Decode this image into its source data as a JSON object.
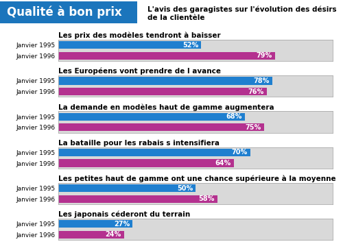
{
  "title": "Qualité à bon prix",
  "subtitle": "L'avis des garagistes sur l'évolution des désirs de la clientèle",
  "chart_data": [
    {
      "type": "bar",
      "orientation": "horizontal",
      "title": "Les prix des modèles tendront à baisser",
      "categories": [
        "Janvier 1995",
        "Janvier 1996"
      ],
      "values": [
        52,
        79
      ],
      "value_labels": [
        "52%",
        "79%"
      ],
      "colors": [
        "#1f7fcf",
        "#b4318f"
      ],
      "xlim": [
        0,
        100
      ],
      "tick_labels": "y",
      "data_labels": true
    },
    {
      "type": "bar",
      "orientation": "horizontal",
      "title": "Les Européens vont prendre de l avance",
      "categories": [
        "Janvier 1995",
        "Janvier 1996"
      ],
      "values": [
        78,
        76
      ],
      "value_labels": [
        "78%",
        "76%"
      ],
      "colors": [
        "#1f7fcf",
        "#b4318f"
      ],
      "xlim": [
        0,
        100
      ],
      "tick_labels": "y",
      "data_labels": true
    },
    {
      "type": "bar",
      "orientation": "horizontal",
      "title": "La demande en modèles haut de gamme augmentera",
      "categories": [
        "Janvier 1995",
        "Janvier 1996"
      ],
      "values": [
        68,
        75
      ],
      "value_labels": [
        "68%",
        "75%"
      ],
      "colors": [
        "#1f7fcf",
        "#b4318f"
      ],
      "xlim": [
        0,
        100
      ],
      "tick_labels": "y",
      "data_labels": true
    },
    {
      "type": "bar",
      "orientation": "horizontal",
      "title": "La bataille pour les rabais s intensifiera",
      "categories": [
        "Janvier 1995",
        "Janvier 1996"
      ],
      "values": [
        70,
        64
      ],
      "value_labels": [
        "70%",
        "64%"
      ],
      "colors": [
        "#1f7fcf",
        "#b4318f"
      ],
      "xlim": [
        0,
        100
      ],
      "tick_labels": "y",
      "data_labels": true
    },
    {
      "type": "bar",
      "orientation": "horizontal",
      "title": "Les petites haut de gamme ont une chance supérieure à la moyenne",
      "categories": [
        "Janvier 1995",
        "Janvier 1996"
      ],
      "values": [
        50,
        58
      ],
      "value_labels": [
        "50%",
        "58%"
      ],
      "colors": [
        "#1f7fcf",
        "#b4318f"
      ],
      "xlim": [
        0,
        100
      ],
      "tick_labels": "y",
      "data_labels": true
    },
    {
      "type": "bar",
      "orientation": "horizontal",
      "title": "Les japonais céderont du terrain",
      "categories": [
        "Janvier 1995",
        "Janvier 1996"
      ],
      "values": [
        27,
        24
      ],
      "value_labels": [
        "27%",
        "24%"
      ],
      "colors": [
        "#1f7fcf",
        "#b4318f"
      ],
      "xlim": [
        0,
        100
      ],
      "tick_labels": "y",
      "data_labels": true
    }
  ]
}
